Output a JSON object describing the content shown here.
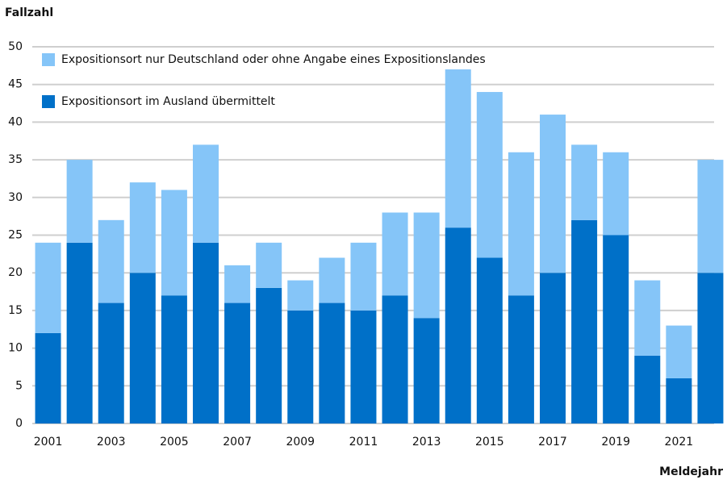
{
  "chart_data": {
    "type": "stacked_bar",
    "y_label": "Fallzahl",
    "x_label": "Meldejahr",
    "categories": [
      "2001",
      null,
      "2003",
      null,
      "2005",
      null,
      "2007",
      null,
      "2009",
      null,
      "2011",
      null,
      "2013",
      null,
      "2015",
      null,
      "2017",
      null,
      "2019",
      null,
      "2021",
      null
    ],
    "series": [
      {
        "name": "Expositionsort im Ausland übermittelt",
        "color": "#0070c8",
        "values": [
          12,
          24,
          16,
          20,
          17,
          24,
          16,
          18,
          15,
          16,
          15,
          17,
          14,
          26,
          22,
          17,
          20,
          27,
          25,
          9,
          6,
          20
        ]
      },
      {
        "name": "Expositionsort nur Deutschland oder ohne Angabe eines Expositionslandes",
        "color": "#85c5f8",
        "values": [
          12,
          11,
          11,
          12,
          14,
          13,
          5,
          6,
          4,
          6,
          9,
          11,
          14,
          21,
          22,
          19,
          21,
          10,
          11,
          10,
          7,
          15
        ]
      }
    ],
    "ylim": [
      0,
      50
    ],
    "yticks": [
      0,
      5,
      10,
      15,
      20,
      25,
      30,
      35,
      40,
      45,
      50
    ],
    "grid": true,
    "legend": "top-left"
  }
}
